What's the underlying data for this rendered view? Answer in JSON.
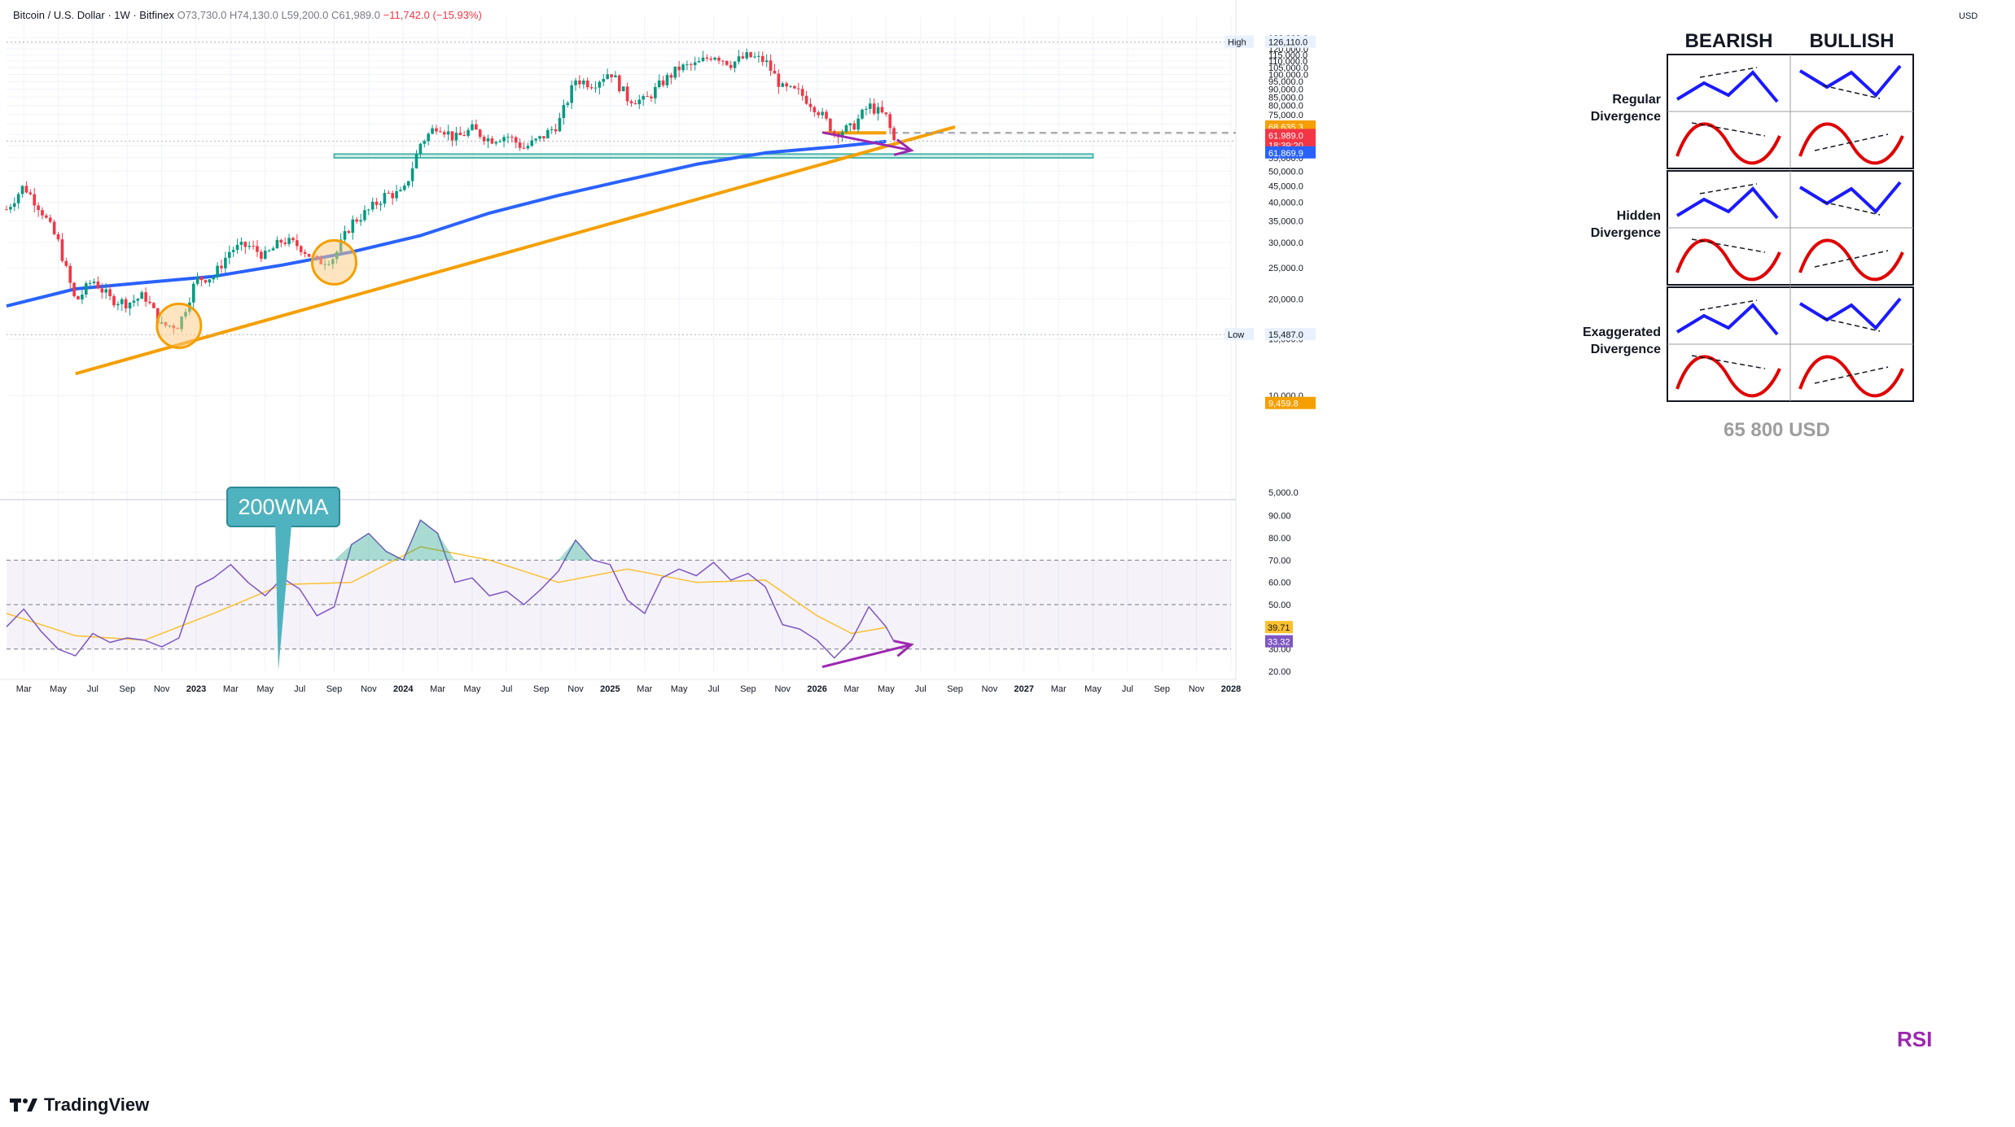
{
  "header": {
    "symbol": "Bitcoin / U.S. Dollar · 1W · Bitfinex",
    "open": "O73,730.0",
    "high": "H74,130.0",
    "low": "L59,200.0",
    "close": "C61,989.0",
    "change": "−11,742.0 (−15.93%)"
  },
  "axis_unit": "USD",
  "branding": {
    "name": "TradingView"
  },
  "annotations": {
    "wma_callout": "200WMA",
    "target_label": "65 800 USD",
    "rsi_label": "RSI"
  },
  "price_tags": [
    {
      "label": "High",
      "value": "126,110.0",
      "color": "#e8f1fd"
    },
    {
      "label": "",
      "value": "68,635.3",
      "color": "#f59f00"
    },
    {
      "label": "",
      "value": "61,989.0",
      "color": "#f23645"
    },
    {
      "label": "",
      "value": "18:39:20",
      "color": "#f23645"
    },
    {
      "label": "",
      "value": "61,869.9",
      "color": "#2962ff"
    },
    {
      "label": "Low",
      "value": "15,487.0",
      "color": "#e8f1fd"
    },
    {
      "label": "",
      "value": "9,459.8",
      "color": "#f59f00"
    }
  ],
  "rsi_tags": [
    {
      "value": "39.71",
      "color": "#fbc02d"
    },
    {
      "value": "33.32",
      "color": "#7e57c2"
    }
  ],
  "divergence_table": {
    "columns": [
      "BEARISH",
      "BULLISH"
    ],
    "rows": [
      "Regular\nDivergence",
      "Hidden\nDivergence",
      "Exaggerated\nDivergence"
    ]
  },
  "colors": {
    "up": "#089981",
    "down": "#f23645",
    "wma": "#2962ff",
    "trend": "#f59f00",
    "rsi": "#7e57c2",
    "rsi_ma": "#fbc02d",
    "divergence": "#9c27b0",
    "zone": "#4db6ac"
  },
  "chart_data": [
    {
      "type": "candlestick",
      "title": "Bitcoin / U.S. Dollar · 1W · Bitfinex",
      "ylabel": "USD",
      "ylim": [
        5000,
        135000
      ],
      "y_scale": "log",
      "y_ticks": [
        "130,000.0",
        "125,000.0",
        "120,000.0",
        "115,000.0",
        "110,000.0",
        "105,000.0",
        "100,000.0",
        "95,000.0",
        "90,000.0",
        "85,000.0",
        "80,000.0",
        "75,000.0",
        "70,000.0",
        "65,000.0",
        "60,000.0",
        "55,000.0",
        "50,000.0",
        "45,000.0",
        "40,000.0",
        "35,000.0",
        "30,000.0",
        "25,000.0",
        "20,000.0",
        "15,000.0",
        "10,000.0",
        "5,000.0"
      ],
      "x_ticks": [
        "Mar",
        "May",
        "Jul",
        "Sep",
        "Nov",
        "2023",
        "Mar",
        "May",
        "Jul",
        "Sep",
        "Nov",
        "2024",
        "Mar",
        "May",
        "Jul",
        "Sep",
        "Nov",
        "2025",
        "Mar",
        "May",
        "Jul",
        "Sep",
        "Nov",
        "2026",
        "Mar",
        "May",
        "Jul",
        "Sep",
        "Nov",
        "2027",
        "Mar",
        "May",
        "Jul",
        "Sep",
        "Nov",
        "2028"
      ],
      "x_range": [
        "2022-02",
        "2028-01"
      ],
      "grid": true,
      "series": [
        {
          "name": "",
          "points": [
            [
              "2022-02",
              38000
            ],
            [
              "2022-03",
              45000
            ],
            [
              "2022-04",
              38000
            ],
            [
              "2022-05",
              30000
            ],
            [
              "2022-06",
              19500
            ],
            [
              "2022-07",
              23000
            ],
            [
              "2022-08",
              20000
            ],
            [
              "2022-09",
              19400
            ],
            [
              "2022-10",
              20500
            ],
            [
              "2022-11",
              16500
            ],
            [
              "2022-12",
              16600
            ],
            [
              "2023-01",
              23000
            ],
            [
              "2023-02",
              23500
            ],
            [
              "2023-03",
              28500
            ],
            [
              "2023-04",
              29300
            ],
            [
              "2023-05",
              27200
            ],
            [
              "2023-06",
              30500
            ],
            [
              "2023-07",
              29200
            ],
            [
              "2023-08",
              26000
            ],
            [
              "2023-09",
              27000
            ],
            [
              "2023-10",
              34500
            ],
            [
              "2023-11",
              37700
            ],
            [
              "2023-12",
              42300
            ],
            [
              "2024-01",
              42500
            ],
            [
              "2024-02",
              61000
            ],
            [
              "2024-03",
              70000
            ],
            [
              "2024-04",
              63000
            ],
            [
              "2024-05",
              67500
            ],
            [
              "2024-06",
              62700
            ],
            [
              "2024-07",
              64600
            ],
            [
              "2024-08",
              59000
            ],
            [
              "2024-09",
              63300
            ],
            [
              "2024-10",
              70300
            ],
            [
              "2024-11",
              96400
            ],
            [
              "2024-12",
              93400
            ],
            [
              "2025-01",
              102400
            ],
            [
              "2025-02",
              84300
            ],
            [
              "2025-03",
              82500
            ],
            [
              "2025-04",
              94200
            ],
            [
              "2025-05",
              104600
            ],
            [
              "2025-06",
              107100
            ],
            [
              "2025-07",
              115700
            ],
            [
              "2025-08",
              108200
            ],
            [
              "2025-09",
              114000
            ],
            [
              "2025-10",
              110000
            ],
            [
              "2025-11",
              90300
            ],
            [
              "2025-12",
              87500
            ],
            [
              "2026-01",
              78000
            ],
            [
              "2026-02",
              66000
            ],
            [
              "2026-03",
              68000
            ],
            [
              "2026-04",
              80000
            ],
            [
              "2026-05",
              73700
            ],
            [
              "2026-05-15",
              61989
            ]
          ]
        },
        {
          "name": "",
          "points": [
            [
              "2022-02",
              19000
            ],
            [
              "2022-06",
              21500
            ],
            [
              "2022-10",
              22500
            ],
            [
              "2023-02",
              23500
            ],
            [
              "2023-06",
              25500
            ],
            [
              "2023-10",
              28000
            ],
            [
              "2024-02",
              31500
            ],
            [
              "2024-06",
              37000
            ],
            [
              "2024-10",
              42000
            ],
            [
              "2025-02",
              47000
            ],
            [
              "2025-06",
              52500
            ],
            [
              "2025-10",
              57000
            ],
            [
              "2026-02",
              59500
            ],
            [
              "2026-05",
              61870
            ]
          ]
        },
        {
          "name": "",
          "points": [
            [
              "2022-06",
              11700
            ],
            [
              "2026-09",
              68635
            ]
          ]
        }
      ],
      "horizontal_levels": [
        65800
      ],
      "support_zone": [
        55000,
        56500
      ],
      "marked_lows": [
        [
          "2022-12",
          16500
        ],
        [
          "2023-09",
          26000
        ]
      ]
    },
    {
      "type": "line",
      "title": "",
      "ylim": [
        20,
        95
      ],
      "y_ticks": [
        "90.00",
        "80.00",
        "70.00",
        "60.00",
        "50.00",
        "40.00",
        "30.00",
        "20.00"
      ],
      "band": [
        30,
        70
      ],
      "series": [
        {
          "name": "",
          "points": [
            [
              "2022-02",
              40
            ],
            [
              "2022-03",
              48
            ],
            [
              "2022-04",
              38
            ],
            [
              "2022-05",
              30
            ],
            [
              "2022-06",
              27
            ],
            [
              "2022-07",
              37
            ],
            [
              "2022-08",
              33
            ],
            [
              "2022-09",
              35
            ],
            [
              "2022-10",
              34
            ],
            [
              "2022-11",
              31
            ],
            [
              "2022-12",
              35
            ],
            [
              "2023-01",
              58
            ],
            [
              "2023-02",
              62
            ],
            [
              "2023-03",
              68
            ],
            [
              "2023-04",
              60
            ],
            [
              "2023-05",
              54
            ],
            [
              "2023-06",
              62
            ],
            [
              "2023-07",
              57
            ],
            [
              "2023-08",
              45
            ],
            [
              "2023-09",
              49
            ],
            [
              "2023-10",
              77
            ],
            [
              "2023-11",
              82
            ],
            [
              "2023-12",
              74
            ],
            [
              "2024-01",
              70
            ],
            [
              "2024-02",
              88
            ],
            [
              "2024-03",
              82
            ],
            [
              "2024-04",
              60
            ],
            [
              "2024-05",
              62
            ],
            [
              "2024-06",
              54
            ],
            [
              "2024-07",
              56
            ],
            [
              "2024-08",
              50
            ],
            [
              "2024-09",
              57
            ],
            [
              "2024-10",
              65
            ],
            [
              "2024-11",
              79
            ],
            [
              "2024-12",
              70
            ],
            [
              "2025-01",
              68
            ],
            [
              "2025-02",
              52
            ],
            [
              "2025-03",
              46
            ],
            [
              "2025-04",
              62
            ],
            [
              "2025-05",
              66
            ],
            [
              "2025-06",
              63
            ],
            [
              "2025-07",
              69
            ],
            [
              "2025-08",
              61
            ],
            [
              "2025-09",
              64
            ],
            [
              "2025-10",
              58
            ],
            [
              "2025-11",
              41
            ],
            [
              "2025-12",
              39
            ],
            [
              "2026-01",
              34
            ],
            [
              "2026-02",
              26
            ],
            [
              "2026-03",
              34
            ],
            [
              "2026-04",
              49
            ],
            [
              "2026-05",
              40
            ],
            [
              "2026-05-15",
              33.32
            ]
          ]
        },
        {
          "name": "",
          "points": [
            [
              "2022-02",
              46
            ],
            [
              "2022-06",
              36
            ],
            [
              "2022-10",
              34
            ],
            [
              "2023-02",
              46
            ],
            [
              "2023-06",
              59
            ],
            [
              "2023-10",
              60
            ],
            [
              "2024-02",
              76
            ],
            [
              "2024-06",
              70
            ],
            [
              "2024-10",
              60
            ],
            [
              "2025-02",
              66
            ],
            [
              "2025-06",
              60
            ],
            [
              "2025-10",
              61
            ],
            [
              "2026-01",
              45
            ],
            [
              "2026-03",
              37
            ],
            [
              "2026-05",
              39.71
            ]
          ]
        }
      ]
    }
  ]
}
